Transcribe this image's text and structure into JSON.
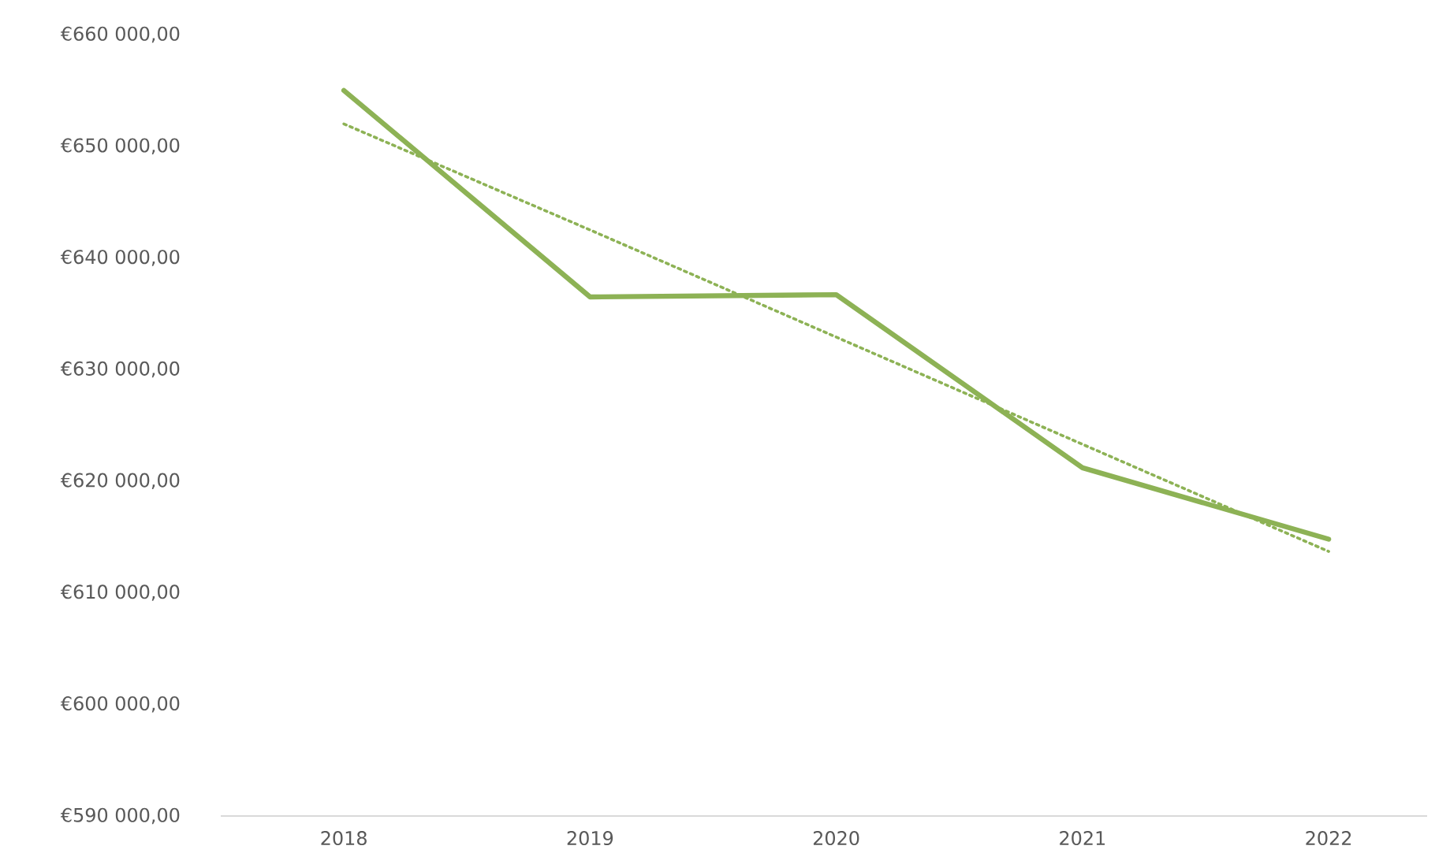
{
  "chart_data": {
    "type": "line",
    "categories": [
      "2018",
      "2019",
      "2020",
      "2021",
      "2022"
    ],
    "series": [
      {
        "color": "#8db255",
        "line_style": "solid",
        "values": [
          655000,
          636500,
          636700,
          621200,
          614800
        ]
      },
      {
        "color": "#8db255",
        "line_style": "dotted",
        "values": [
          652000,
          642500,
          632900,
          623300,
          613700
        ]
      }
    ],
    "ylim": [
      590000,
      660000
    ],
    "yticks": [
      {
        "value": 590000,
        "label": "€590 000,00"
      },
      {
        "value": 600000,
        "label": "€600 000,00"
      },
      {
        "value": 610000,
        "label": "€610 000,00"
      },
      {
        "value": 620000,
        "label": "€620 000,00"
      },
      {
        "value": 630000,
        "label": "€630 000,00"
      },
      {
        "value": 640000,
        "label": "€640 000,00"
      },
      {
        "value": 650000,
        "label": "€650 000,00"
      },
      {
        "value": 660000,
        "label": "€660 000,00"
      }
    ]
  }
}
